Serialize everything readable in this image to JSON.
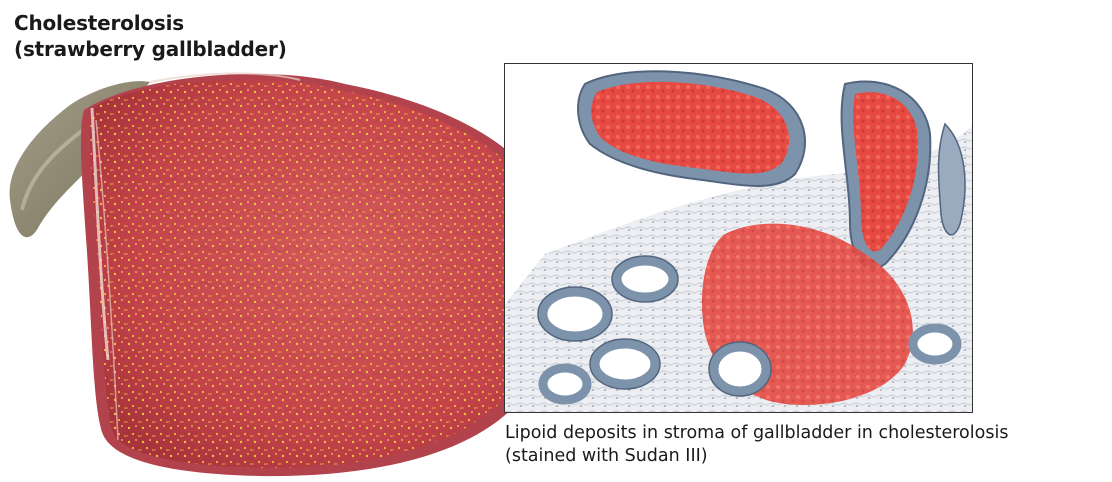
{
  "title": {
    "line1": "Cholesterolosis",
    "line2": "(strawberry gallbladder)"
  },
  "caption": {
    "line1": "Lipoid deposits in stroma of gallbladder in cholesterolosis",
    "line2": "(stained with Sudan III)"
  },
  "colors": {
    "mucosa_red": "#c9444a",
    "cholesterol_dots": "#f2c040",
    "lipid_red": "#e0453f",
    "epithelium_blue": "#7d93ac",
    "stroma": "#e9ebf0"
  }
}
